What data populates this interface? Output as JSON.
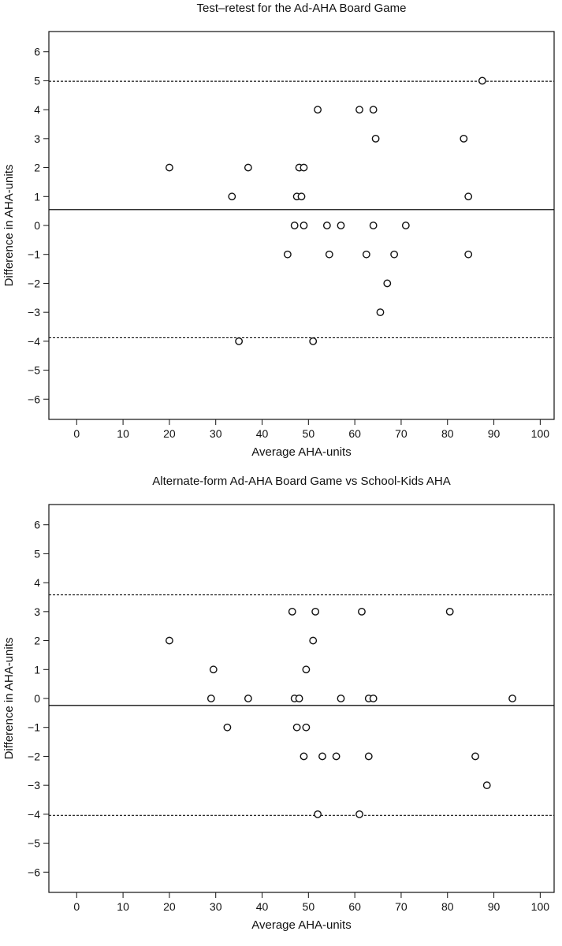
{
  "chart_data": [
    {
      "type": "scatter",
      "title": "Test–retest for the Ad-AHA Board Game",
      "xlabel": "Average AHA-units",
      "ylabel": "Difference in AHA-units",
      "xlim": [
        -6,
        103
      ],
      "ylim": [
        -6.7,
        6.7
      ],
      "xticks": [
        0,
        10,
        20,
        30,
        40,
        50,
        60,
        70,
        80,
        90,
        100
      ],
      "yticks": [
        6,
        5,
        4,
        3,
        2,
        1,
        0,
        -1,
        -2,
        -3,
        -4,
        -5,
        -6
      ],
      "xtick_labels": [
        "0",
        "10",
        "20",
        "30",
        "40",
        "50",
        "60",
        "70",
        "80",
        "90",
        "100"
      ],
      "ytick_labels": [
        "6",
        "5",
        "4",
        "3",
        "2",
        "1",
        "0",
        "−1",
        "−2",
        "−3",
        "−4",
        "−5",
        "−6"
      ],
      "mean_line": 0.55,
      "limits_of_agreement": [
        4.98,
        -3.88
      ],
      "grid": false,
      "points": [
        {
          "x": 20,
          "y": 2
        },
        {
          "x": 33.5,
          "y": 1
        },
        {
          "x": 37,
          "y": 2
        },
        {
          "x": 35,
          "y": -4
        },
        {
          "x": 45.5,
          "y": -1
        },
        {
          "x": 47,
          "y": 0
        },
        {
          "x": 47.5,
          "y": 1
        },
        {
          "x": 48,
          "y": 2
        },
        {
          "x": 48.5,
          "y": 1
        },
        {
          "x": 49,
          "y": 2
        },
        {
          "x": 49,
          "y": 0
        },
        {
          "x": 51,
          "y": -4
        },
        {
          "x": 52,
          "y": 4
        },
        {
          "x": 54,
          "y": 0
        },
        {
          "x": 54.5,
          "y": -1
        },
        {
          "x": 57,
          "y": 0
        },
        {
          "x": 61,
          "y": 4
        },
        {
          "x": 62.5,
          "y": -1
        },
        {
          "x": 64,
          "y": 4
        },
        {
          "x": 64,
          "y": 0
        },
        {
          "x": 64.5,
          "y": 3
        },
        {
          "x": 65.5,
          "y": -3
        },
        {
          "x": 67,
          "y": -2
        },
        {
          "x": 68.5,
          "y": -1
        },
        {
          "x": 71,
          "y": 0
        },
        {
          "x": 83.5,
          "y": 3
        },
        {
          "x": 84.5,
          "y": 1
        },
        {
          "x": 84.5,
          "y": -1
        },
        {
          "x": 87.5,
          "y": 5
        }
      ]
    },
    {
      "type": "scatter",
      "title": "Alternate-form Ad-AHA Board Game vs School-Kids AHA",
      "xlabel": "Average AHA-units",
      "ylabel": "Difference in AHA-units",
      "xlim": [
        -6,
        103
      ],
      "ylim": [
        -6.7,
        6.7
      ],
      "xticks": [
        0,
        10,
        20,
        30,
        40,
        50,
        60,
        70,
        80,
        90,
        100
      ],
      "yticks": [
        6,
        5,
        4,
        3,
        2,
        1,
        0,
        -1,
        -2,
        -3,
        -4,
        -5,
        -6
      ],
      "xtick_labels": [
        "0",
        "10",
        "20",
        "30",
        "40",
        "50",
        "60",
        "70",
        "80",
        "90",
        "100"
      ],
      "ytick_labels": [
        "6",
        "5",
        "4",
        "3",
        "2",
        "1",
        "0",
        "−1",
        "−2",
        "−3",
        "−4",
        "−5",
        "−6"
      ],
      "mean_line": -0.24,
      "limits_of_agreement": [
        3.58,
        -4.04
      ],
      "grid": false,
      "points": [
        {
          "x": 20,
          "y": 2
        },
        {
          "x": 29,
          "y": 0
        },
        {
          "x": 29.5,
          "y": 1
        },
        {
          "x": 32.5,
          "y": -1
        },
        {
          "x": 37,
          "y": 0
        },
        {
          "x": 46.5,
          "y": 3
        },
        {
          "x": 47,
          "y": 0
        },
        {
          "x": 47.5,
          "y": -1
        },
        {
          "x": 48,
          "y": 0
        },
        {
          "x": 49,
          "y": -2
        },
        {
          "x": 49.5,
          "y": -1
        },
        {
          "x": 49.5,
          "y": 1
        },
        {
          "x": 51,
          "y": 2
        },
        {
          "x": 51.5,
          "y": 3
        },
        {
          "x": 52,
          "y": -4
        },
        {
          "x": 53,
          "y": -2
        },
        {
          "x": 56,
          "y": -2
        },
        {
          "x": 57,
          "y": 0
        },
        {
          "x": 61,
          "y": -4
        },
        {
          "x": 61.5,
          "y": 3
        },
        {
          "x": 63,
          "y": 0
        },
        {
          "x": 63,
          "y": -2
        },
        {
          "x": 64,
          "y": 0
        },
        {
          "x": 80.5,
          "y": 3
        },
        {
          "x": 86,
          "y": -2
        },
        {
          "x": 88.5,
          "y": -3
        },
        {
          "x": 94,
          "y": 0
        }
      ]
    }
  ]
}
